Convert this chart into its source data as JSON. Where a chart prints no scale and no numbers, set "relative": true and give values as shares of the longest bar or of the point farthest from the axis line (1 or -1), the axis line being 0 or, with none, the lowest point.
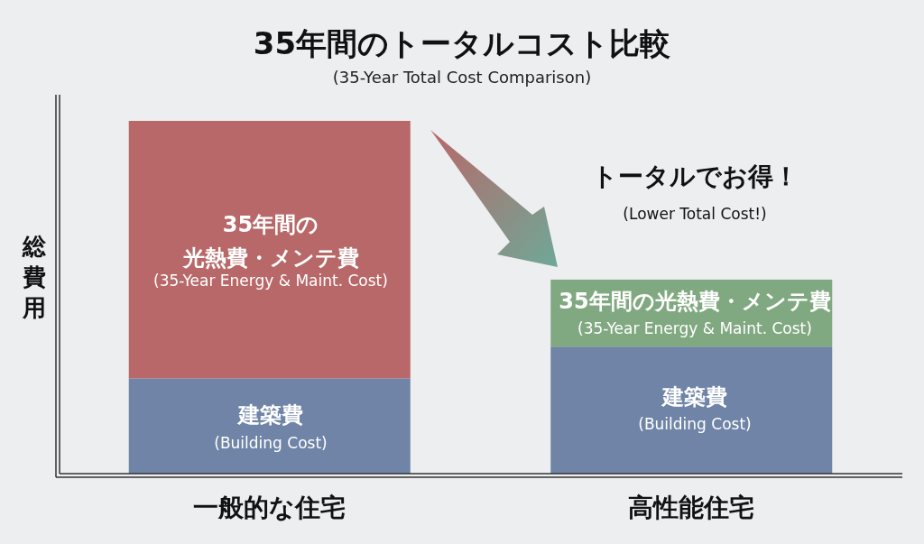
{
  "chart_data": {
    "type": "bar",
    "title": "35年間のトータルコスト比較",
    "subtitle": "(35-Year Total Cost Comparison)",
    "ylabel": "総費用",
    "categories": [
      "一般的な住宅",
      "高性能住宅"
    ],
    "stacked": true,
    "relative": true,
    "series": [
      {
        "color": "#6f84a6",
        "values": [
          0.27,
          0.36
        ]
      },
      {
        "colors": [
          "#b86868",
          "#81a981"
        ],
        "values": [
          0.73,
          0.19
        ]
      }
    ],
    "annotations": [
      "トータルでお得！",
      "(Lower Total Cost!)",
      "35年間の",
      "光熱費・メンテ費",
      "(35-Year Energy & Maint. Cost)",
      "建築費",
      "(Building Cost)",
      "35年間の光熱費・メンテ費",
      "(35-Year Energy & Maint. Cost)",
      "建築費",
      "(Building Cost)"
    ]
  }
}
